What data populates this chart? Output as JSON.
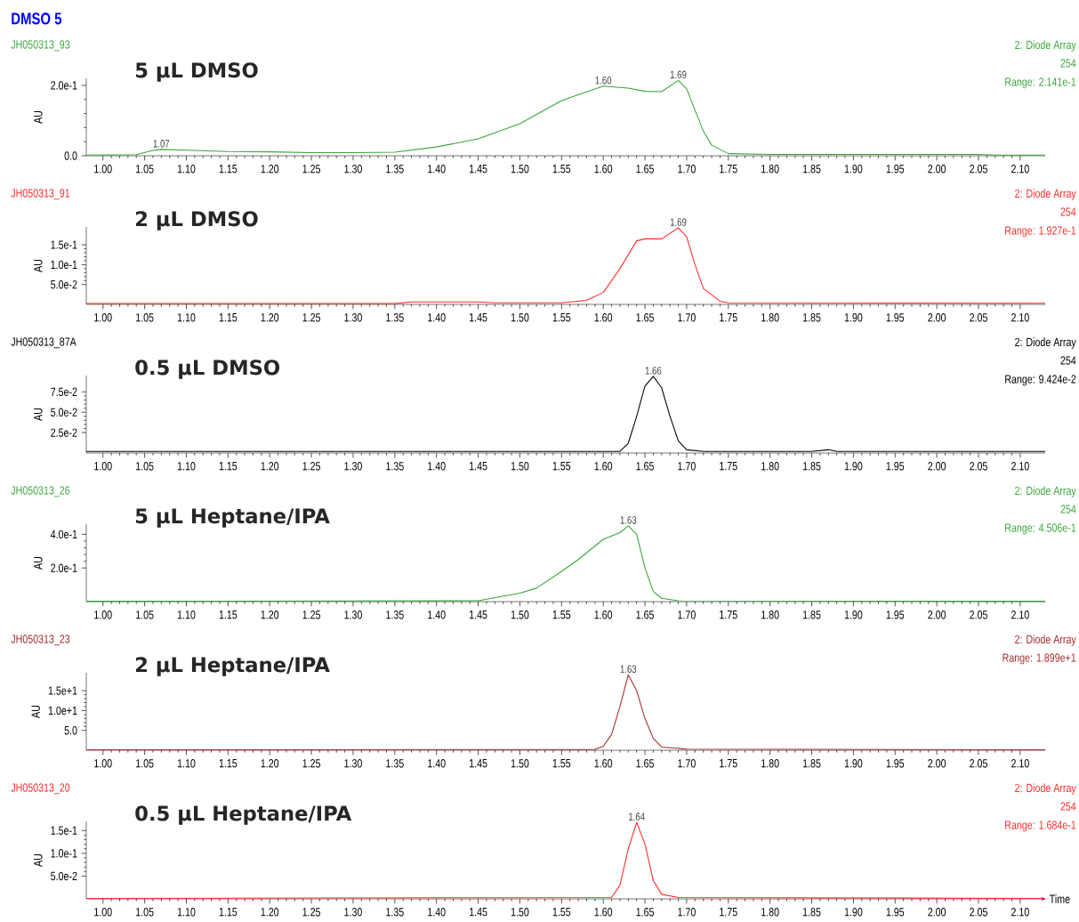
{
  "chart_data": [
    {
      "type": "other",
      "title": "DMSO 5",
      "color": "#0000ff"
    },
    {
      "type": "line",
      "title": "5 µL DMSO",
      "subtitle": "JH050313_93",
      "ylabel": "AU",
      "color": "#3aa53a",
      "annotations": [
        "2: Diode Array",
        "254",
        "Range: 2.141e-1",
        {
          "text": "1.07",
          "x": 1.07,
          "y": 0.018
        },
        {
          "text": "1.60",
          "x": 1.6,
          "y": 0.198
        },
        {
          "text": "1.69",
          "x": 1.69,
          "y": 0.214
        }
      ],
      "x": [
        0.98,
        1.04,
        1.06,
        1.07,
        1.1,
        1.15,
        1.2,
        1.25,
        1.3,
        1.35,
        1.4,
        1.45,
        1.5,
        1.55,
        1.6,
        1.63,
        1.65,
        1.67,
        1.69,
        1.7,
        1.71,
        1.72,
        1.73,
        1.75,
        1.8,
        2.05,
        2.07,
        2.13
      ],
      "values": [
        0.002,
        0.003,
        0.015,
        0.018,
        0.016,
        0.012,
        0.011,
        0.009,
        0.009,
        0.01,
        0.025,
        0.048,
        0.091,
        0.157,
        0.198,
        0.192,
        0.183,
        0.182,
        0.214,
        0.19,
        0.13,
        0.07,
        0.03,
        0.006,
        0.004,
        0.004,
        0.002,
        0.002
      ],
      "xlim": [
        0.98,
        2.13
      ],
      "ylim": [
        0,
        0.22
      ],
      "xticks": [
        {
          "value": 1.0,
          "label": "1.00"
        },
        {
          "value": 1.05,
          "label": "1.05"
        },
        {
          "value": 1.1,
          "label": "1.10"
        },
        {
          "value": 1.15,
          "label": "1.15"
        },
        {
          "value": 1.2,
          "label": "1.20"
        },
        {
          "value": 1.25,
          "label": "1.25"
        },
        {
          "value": 1.3,
          "label": "1.30"
        },
        {
          "value": 1.35,
          "label": "1.35"
        },
        {
          "value": 1.4,
          "label": "1.40"
        },
        {
          "value": 1.45,
          "label": "1.45"
        },
        {
          "value": 1.5,
          "label": "1.50"
        },
        {
          "value": 1.55,
          "label": "1.55"
        },
        {
          "value": 1.6,
          "label": "1.60"
        },
        {
          "value": 1.65,
          "label": "1.65"
        },
        {
          "value": 1.7,
          "label": "1.70"
        },
        {
          "value": 1.75,
          "label": "1.75"
        },
        {
          "value": 1.8,
          "label": "1.80"
        },
        {
          "value": 1.85,
          "label": "1.85"
        },
        {
          "value": 1.9,
          "label": "1.90"
        },
        {
          "value": 1.95,
          "label": "1.95"
        },
        {
          "value": 2.0,
          "label": "2.00"
        },
        {
          "value": 2.05,
          "label": "2.05"
        },
        {
          "value": 2.1,
          "label": "2.10"
        }
      ],
      "yticks": [
        {
          "value": 0,
          "label": "0.0"
        },
        {
          "value": 0.2,
          "label": "2.0e-1"
        }
      ]
    },
    {
      "type": "line",
      "title": "2 µL DMSO",
      "subtitle": "JH050313_91",
      "ylabel": "AU",
      "color": "#ff2a2a",
      "annotations": [
        "2: Diode Array",
        "254",
        "Range: 1.927e-1",
        {
          "text": "1.69",
          "x": 1.69,
          "y": 0.1927
        }
      ],
      "x": [
        0.98,
        1.35,
        1.37,
        1.45,
        1.47,
        1.55,
        1.58,
        1.6,
        1.62,
        1.64,
        1.65,
        1.67,
        1.69,
        1.7,
        1.71,
        1.72,
        1.74,
        1.75,
        2.13
      ],
      "values": [
        0.002,
        0.002,
        0.006,
        0.006,
        0.004,
        0.004,
        0.01,
        0.03,
        0.09,
        0.16,
        0.165,
        0.165,
        0.1927,
        0.17,
        0.1,
        0.04,
        0.008,
        0.004,
        0.003
      ],
      "xlim": [
        0.98,
        2.13
      ],
      "ylim": [
        0,
        0.195
      ],
      "xticks": [
        {
          "value": 1.0,
          "label": "1.00"
        },
        {
          "value": 1.05,
          "label": "1.05"
        },
        {
          "value": 1.1,
          "label": "1.10"
        },
        {
          "value": 1.15,
          "label": "1.15"
        },
        {
          "value": 1.2,
          "label": "1.20"
        },
        {
          "value": 1.25,
          "label": "1.25"
        },
        {
          "value": 1.3,
          "label": "1.30"
        },
        {
          "value": 1.35,
          "label": "1.35"
        },
        {
          "value": 1.4,
          "label": "1.40"
        },
        {
          "value": 1.45,
          "label": "1.45"
        },
        {
          "value": 1.5,
          "label": "1.50"
        },
        {
          "value": 1.55,
          "label": "1.55"
        },
        {
          "value": 1.6,
          "label": "1.60"
        },
        {
          "value": 1.65,
          "label": "1.65"
        },
        {
          "value": 1.7,
          "label": "1.70"
        },
        {
          "value": 1.75,
          "label": "1.75"
        },
        {
          "value": 1.8,
          "label": "1.80"
        },
        {
          "value": 1.85,
          "label": "1.85"
        },
        {
          "value": 1.9,
          "label": "1.90"
        },
        {
          "value": 1.95,
          "label": "1.95"
        },
        {
          "value": 2.0,
          "label": "2.00"
        },
        {
          "value": 2.05,
          "label": "2.05"
        },
        {
          "value": 2.1,
          "label": "2.10"
        }
      ],
      "yticks": [
        {
          "value": 0.05,
          "label": "5.0e-2"
        },
        {
          "value": 0.1,
          "label": "1.0e-1"
        },
        {
          "value": 0.15,
          "label": "1.5e-1"
        }
      ]
    },
    {
      "type": "line",
      "title": "0.5 µL DMSO",
      "subtitle": "JH050313_87A",
      "ylabel": "AU",
      "color": "#000000",
      "annotations": [
        "2: Diode Array",
        "254",
        "Range: 9.424e-2",
        {
          "text": "1.66",
          "x": 1.66,
          "y": 0.094
        }
      ],
      "x": [
        0.98,
        1.62,
        1.63,
        1.64,
        1.65,
        1.66,
        1.67,
        1.68,
        1.69,
        1.7,
        1.72,
        1.85,
        1.87,
        1.88,
        2.13
      ],
      "values": [
        0.002,
        0.002,
        0.012,
        0.045,
        0.082,
        0.094,
        0.08,
        0.045,
        0.015,
        0.004,
        0.002,
        0.002,
        0.004,
        0.002,
        0.002
      ],
      "xlim": [
        0.98,
        2.13
      ],
      "ylim": [
        0,
        0.095
      ],
      "xticks": [
        {
          "value": 1.0,
          "label": "1.00"
        },
        {
          "value": 1.05,
          "label": "1.05"
        },
        {
          "value": 1.1,
          "label": "1.10"
        },
        {
          "value": 1.15,
          "label": "1.15"
        },
        {
          "value": 1.2,
          "label": "1.20"
        },
        {
          "value": 1.25,
          "label": "1.25"
        },
        {
          "value": 1.3,
          "label": "1.30"
        },
        {
          "value": 1.35,
          "label": "1.35"
        },
        {
          "value": 1.4,
          "label": "1.40"
        },
        {
          "value": 1.45,
          "label": "1.45"
        },
        {
          "value": 1.5,
          "label": "1.50"
        },
        {
          "value": 1.55,
          "label": "1.55"
        },
        {
          "value": 1.6,
          "label": "1.60"
        },
        {
          "value": 1.65,
          "label": "1.65"
        },
        {
          "value": 1.7,
          "label": "1.70"
        },
        {
          "value": 1.75,
          "label": "1.75"
        },
        {
          "value": 1.8,
          "label": "1.80"
        },
        {
          "value": 1.85,
          "label": "1.85"
        },
        {
          "value": 1.9,
          "label": "1.90"
        },
        {
          "value": 1.95,
          "label": "1.95"
        },
        {
          "value": 2.0,
          "label": "2.00"
        },
        {
          "value": 2.05,
          "label": "2.05"
        },
        {
          "value": 2.1,
          "label": "2.10"
        }
      ],
      "yticks": [
        {
          "value": 0.025,
          "label": "2.5e-2"
        },
        {
          "value": 0.05,
          "label": "5.0e-2"
        },
        {
          "value": 0.075,
          "label": "7.5e-2"
        }
      ]
    },
    {
      "type": "line",
      "title": "5 µL Heptane/IPA",
      "subtitle": "JH050313_26",
      "ylabel": "AU",
      "color": "#3aa53a",
      "annotations": [
        "2: Diode Array",
        "254",
        "Range: 4.506e-1",
        {
          "text": "1.63",
          "x": 1.63,
          "y": 0.45
        }
      ],
      "x": [
        0.98,
        1.45,
        1.5,
        1.52,
        1.55,
        1.57,
        1.6,
        1.62,
        1.63,
        1.64,
        1.65,
        1.66,
        1.67,
        1.69,
        2.13
      ],
      "values": [
        0.002,
        0.005,
        0.05,
        0.08,
        0.18,
        0.25,
        0.37,
        0.41,
        0.45,
        0.4,
        0.2,
        0.06,
        0.02,
        0.005,
        0.002
      ],
      "xlim": [
        0.98,
        2.13
      ],
      "ylim": [
        0,
        0.46
      ],
      "xticks": [
        {
          "value": 1.0,
          "label": "1.00"
        },
        {
          "value": 1.05,
          "label": "1.05"
        },
        {
          "value": 1.1,
          "label": "1.10"
        },
        {
          "value": 1.15,
          "label": "1.15"
        },
        {
          "value": 1.2,
          "label": "1.20"
        },
        {
          "value": 1.25,
          "label": "1.25"
        },
        {
          "value": 1.3,
          "label": "1.30"
        },
        {
          "value": 1.35,
          "label": "1.35"
        },
        {
          "value": 1.4,
          "label": "1.40"
        },
        {
          "value": 1.45,
          "label": "1.45"
        },
        {
          "value": 1.5,
          "label": "1.50"
        },
        {
          "value": 1.55,
          "label": "1.55"
        },
        {
          "value": 1.6,
          "label": "1.60"
        },
        {
          "value": 1.65,
          "label": "1.65"
        },
        {
          "value": 1.7,
          "label": "1.70"
        },
        {
          "value": 1.75,
          "label": "1.75"
        },
        {
          "value": 1.8,
          "label": "1.80"
        },
        {
          "value": 1.85,
          "label": "1.85"
        },
        {
          "value": 1.9,
          "label": "1.90"
        },
        {
          "value": 1.95,
          "label": "1.95"
        },
        {
          "value": 2.0,
          "label": "2.00"
        },
        {
          "value": 2.05,
          "label": "2.05"
        },
        {
          "value": 2.1,
          "label": "2.10"
        }
      ],
      "yticks": [
        {
          "value": 0.2,
          "label": "2.0e-1"
        },
        {
          "value": 0.4,
          "label": "4.0e-1"
        }
      ]
    },
    {
      "type": "line",
      "title": "2 µL Heptane/IPA",
      "subtitle": "JH050313_23",
      "ylabel": "AU",
      "color": "#a52a2a",
      "annotations": [
        "2: Diode Array",
        "Range: 1.899e+1",
        {
          "text": "1.63",
          "x": 1.63,
          "y": 19
        }
      ],
      "x": [
        0.98,
        1.59,
        1.6,
        1.61,
        1.62,
        1.63,
        1.64,
        1.65,
        1.66,
        1.67,
        1.7,
        2.13
      ],
      "values": [
        0.1,
        0.2,
        1,
        4,
        11,
        19,
        15,
        8,
        3,
        0.8,
        0.3,
        0.1
      ],
      "xlim": [
        0.98,
        2.13
      ],
      "ylim": [
        0,
        19.5
      ],
      "xticks": [
        {
          "value": 1.0,
          "label": "1.00"
        },
        {
          "value": 1.05,
          "label": "1.05"
        },
        {
          "value": 1.1,
          "label": "1.10"
        },
        {
          "value": 1.15,
          "label": "1.15"
        },
        {
          "value": 1.2,
          "label": "1.20"
        },
        {
          "value": 1.25,
          "label": "1.25"
        },
        {
          "value": 1.3,
          "label": "1.30"
        },
        {
          "value": 1.35,
          "label": "1.35"
        },
        {
          "value": 1.4,
          "label": "1.40"
        },
        {
          "value": 1.45,
          "label": "1.45"
        },
        {
          "value": 1.5,
          "label": "1.50"
        },
        {
          "value": 1.55,
          "label": "1.55"
        },
        {
          "value": 1.6,
          "label": "1.60"
        },
        {
          "value": 1.65,
          "label": "1.65"
        },
        {
          "value": 1.7,
          "label": "1.70"
        },
        {
          "value": 1.75,
          "label": "1.75"
        },
        {
          "value": 1.8,
          "label": "1.80"
        },
        {
          "value": 1.85,
          "label": "1.85"
        },
        {
          "value": 1.9,
          "label": "1.90"
        },
        {
          "value": 1.95,
          "label": "1.95"
        },
        {
          "value": 2.0,
          "label": "2.00"
        },
        {
          "value": 2.05,
          "label": "2.05"
        },
        {
          "value": 2.1,
          "label": "2.10"
        }
      ],
      "yticks": [
        {
          "value": 5,
          "label": "5.0"
        },
        {
          "value": 10,
          "label": "1.0e+1"
        },
        {
          "value": 15,
          "label": "1.5e+1"
        }
      ]
    },
    {
      "type": "line",
      "title": "0.5 µL Heptane/IPA",
      "subtitle": "JH050313_20",
      "ylabel": "AU",
      "xlabel": "Time",
      "color": "#ff2a2a",
      "annotations": [
        "2: Diode Array",
        "254",
        "Range: 1.684e-1",
        {
          "text": "1.64",
          "x": 1.64,
          "y": 0.168
        }
      ],
      "x": [
        0.98,
        1.61,
        1.62,
        1.63,
        1.64,
        1.65,
        1.66,
        1.67,
        1.69,
        2.13
      ],
      "values": [
        0.001,
        0.003,
        0.03,
        0.11,
        0.168,
        0.12,
        0.04,
        0.01,
        0.003,
        0.001
      ],
      "xlim": [
        0.98,
        2.13
      ],
      "ylim": [
        0,
        0.17
      ],
      "xticks": [
        {
          "value": 1.0,
          "label": "1.00"
        },
        {
          "value": 1.05,
          "label": "1.05"
        },
        {
          "value": 1.1,
          "label": "1.10"
        },
        {
          "value": 1.15,
          "label": "1.15"
        },
        {
          "value": 1.2,
          "label": "1.20"
        },
        {
          "value": 1.25,
          "label": "1.25"
        },
        {
          "value": 1.3,
          "label": "1.30"
        },
        {
          "value": 1.35,
          "label": "1.35"
        },
        {
          "value": 1.4,
          "label": "1.40"
        },
        {
          "value": 1.45,
          "label": "1.45"
        },
        {
          "value": 1.5,
          "label": "1.50"
        },
        {
          "value": 1.55,
          "label": "1.55"
        },
        {
          "value": 1.6,
          "label": "1.60"
        },
        {
          "value": 1.65,
          "label": "1.65"
        },
        {
          "value": 1.7,
          "label": "1.70"
        },
        {
          "value": 1.75,
          "label": "1.75"
        },
        {
          "value": 1.8,
          "label": "1.80"
        },
        {
          "value": 1.85,
          "label": "1.85"
        },
        {
          "value": 1.9,
          "label": "1.90"
        },
        {
          "value": 1.95,
          "label": "1.95"
        },
        {
          "value": 2.0,
          "label": "2.00"
        },
        {
          "value": 2.05,
          "label": "2.05"
        },
        {
          "value": 2.1,
          "label": "2.10"
        }
      ],
      "yticks": [
        {
          "value": 0.05,
          "label": "5.0e-2"
        },
        {
          "value": 0.1,
          "label": "1.0e-1"
        },
        {
          "value": 0.15,
          "label": "1.5e-1"
        }
      ]
    }
  ]
}
